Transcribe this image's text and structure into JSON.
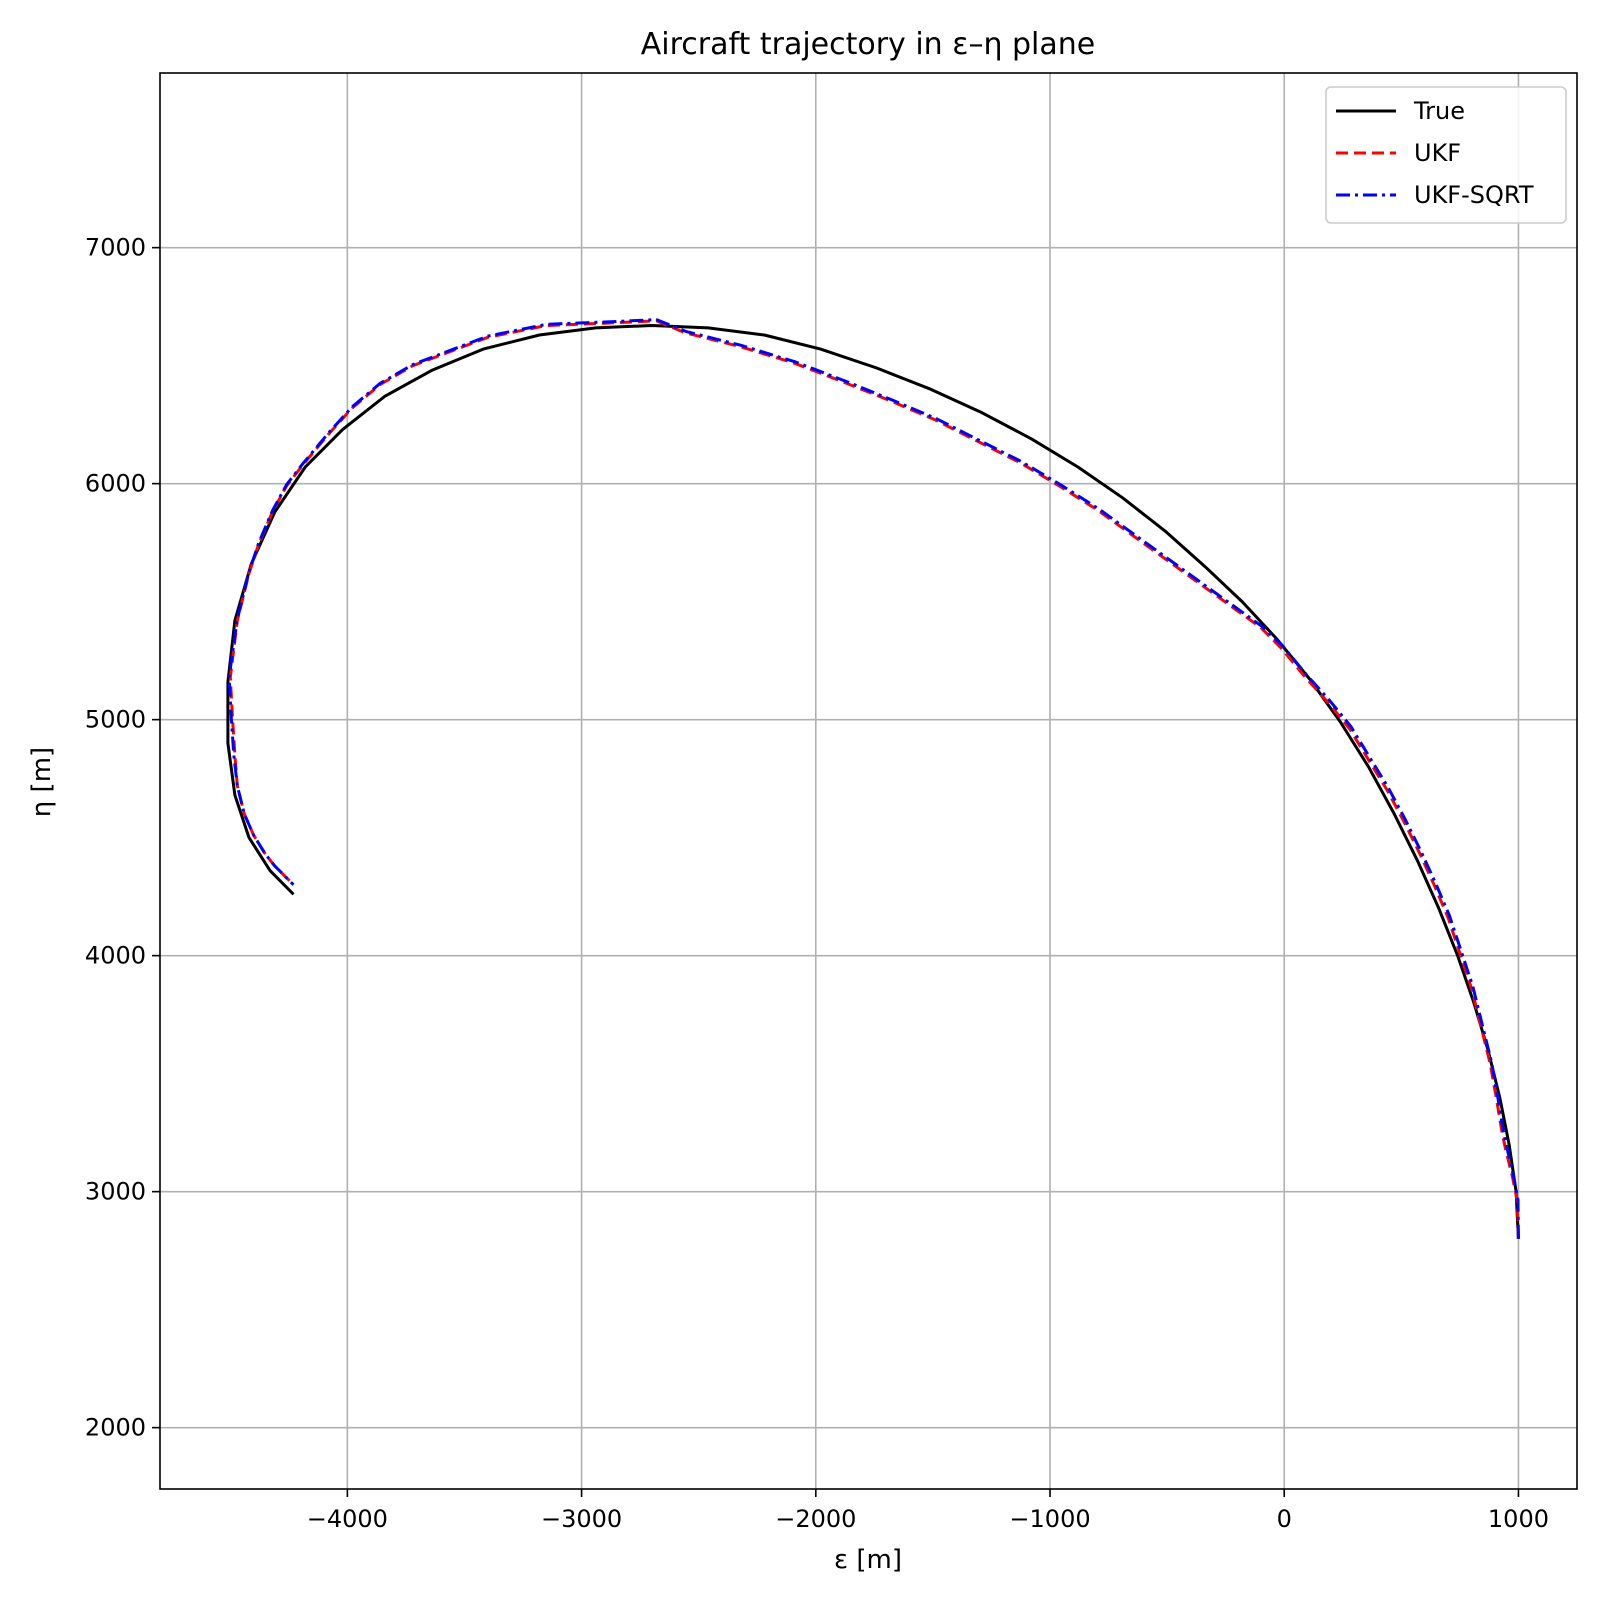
{
  "chart_data": {
    "type": "line",
    "title": "Aircraft trajectory in ε–η plane",
    "xlabel": "ε [m]",
    "ylabel": "η [m]",
    "xlim": [
      -4800,
      1250
    ],
    "ylim": [
      1740,
      7740
    ],
    "xticks": [
      -4000,
      -3000,
      -2000,
      -1000,
      0,
      1000
    ],
    "xtick_labels": [
      "−4000",
      "−3000",
      "−2000",
      "−1000",
      "0",
      "1000"
    ],
    "yticks": [
      2000,
      3000,
      4000,
      5000,
      6000,
      7000
    ],
    "ytick_labels": [
      "2000",
      "3000",
      "4000",
      "5000",
      "6000",
      "7000"
    ],
    "grid": true,
    "legend_position": "top-right",
    "series": [
      {
        "name": "True",
        "color": "#000000",
        "dash": "solid",
        "x": [
          1000,
          990,
          960,
          920,
          870,
          810,
          740,
          660,
          570,
          470,
          360,
          240,
          110,
          -30,
          -180,
          -340,
          -510,
          -690,
          -880,
          -1080,
          -1290,
          -1510,
          -1740,
          -1980,
          -2220,
          -2460,
          -2700,
          -2940,
          -3180,
          -3420,
          -3640,
          -3840,
          -4020,
          -4180,
          -4310,
          -4410,
          -4480,
          -4510,
          -4510,
          -4480,
          -4420,
          -4330,
          -4230
        ],
        "y": [
          2800,
          3000,
          3200,
          3400,
          3600,
          3800,
          4000,
          4200,
          4400,
          4600,
          4800,
          4990,
          5170,
          5340,
          5500,
          5650,
          5800,
          5940,
          6070,
          6190,
          6300,
          6400,
          6490,
          6570,
          6630,
          6660,
          6670,
          6660,
          6630,
          6570,
          6480,
          6370,
          6230,
          6070,
          5880,
          5660,
          5420,
          5160,
          4900,
          4680,
          4500,
          4360,
          4260
        ]
      },
      {
        "name": "UKF",
        "color": "#ff0000",
        "dash": "dashed",
        "x": [
          1000,
          995,
          975,
          945,
          930,
          905,
          880,
          840,
          800,
          750,
          700,
          640,
          580,
          510,
          440,
          360,
          280,
          190,
          90,
          -10,
          -100,
          -240,
          -380,
          -520,
          -660,
          -800,
          -960,
          -1130,
          -1310,
          -1490,
          -1680,
          -1880,
          -2090,
          -2320,
          -2560,
          -2680,
          -2900,
          -3150,
          -3400,
          -3560,
          -3720,
          -3860,
          -3980,
          -4080,
          -4190,
          -4260,
          -4320,
          -4380,
          -4420,
          -4470,
          -4500,
          -4490,
          -4480,
          -4470,
          -4440,
          -4400,
          -4350,
          -4310,
          -4230
        ],
        "y": [
          2800,
          2960,
          3060,
          3180,
          3250,
          3400,
          3540,
          3700,
          3860,
          4010,
          4160,
          4300,
          4430,
          4570,
          4700,
          4830,
          4960,
          5070,
          5180,
          5300,
          5390,
          5490,
          5590,
          5690,
          5790,
          5890,
          5990,
          6090,
          6180,
          6270,
          6350,
          6430,
          6510,
          6580,
          6640,
          6690,
          6680,
          6670,
          6620,
          6560,
          6500,
          6420,
          6320,
          6210,
          6080,
          5990,
          5880,
          5740,
          5620,
          5420,
          5180,
          5000,
          4850,
          4720,
          4600,
          4510,
          4430,
          4380,
          4300
        ]
      },
      {
        "name": "UKF-SQRT",
        "color": "#0000ff",
        "dash": "dashdot",
        "x": [
          1000,
          998,
          978,
          950,
          935,
          910,
          885,
          845,
          805,
          755,
          705,
          645,
          585,
          515,
          445,
          365,
          285,
          195,
          95,
          -5,
          -95,
          -235,
          -375,
          -515,
          -655,
          -795,
          -955,
          -1125,
          -1305,
          -1485,
          -1675,
          -1875,
          -2085,
          -2315,
          -2555,
          -2680,
          -2900,
          -3150,
          -3400,
          -3560,
          -3720,
          -3860,
          -3980,
          -4080,
          -4190,
          -4260,
          -4320,
          -4380,
          -4420,
          -4470,
          -4505,
          -4495,
          -4485,
          -4470,
          -4440,
          -4400,
          -4350,
          -4310,
          -4230
        ],
        "y": [
          2800,
          2965,
          3070,
          3190,
          3260,
          3410,
          3550,
          3710,
          3870,
          4020,
          4170,
          4310,
          4440,
          4580,
          4710,
          4840,
          4970,
          5080,
          5190,
          5310,
          5395,
          5495,
          5595,
          5695,
          5795,
          5895,
          5995,
          6095,
          6185,
          6275,
          6355,
          6435,
          6515,
          6585,
          6645,
          6695,
          6685,
          6675,
          6625,
          6565,
          6505,
          6425,
          6325,
          6215,
          6085,
          5995,
          5885,
          5745,
          5625,
          5425,
          5180,
          5000,
          4850,
          4720,
          4600,
          4510,
          4430,
          4380,
          4300
        ]
      }
    ]
  }
}
